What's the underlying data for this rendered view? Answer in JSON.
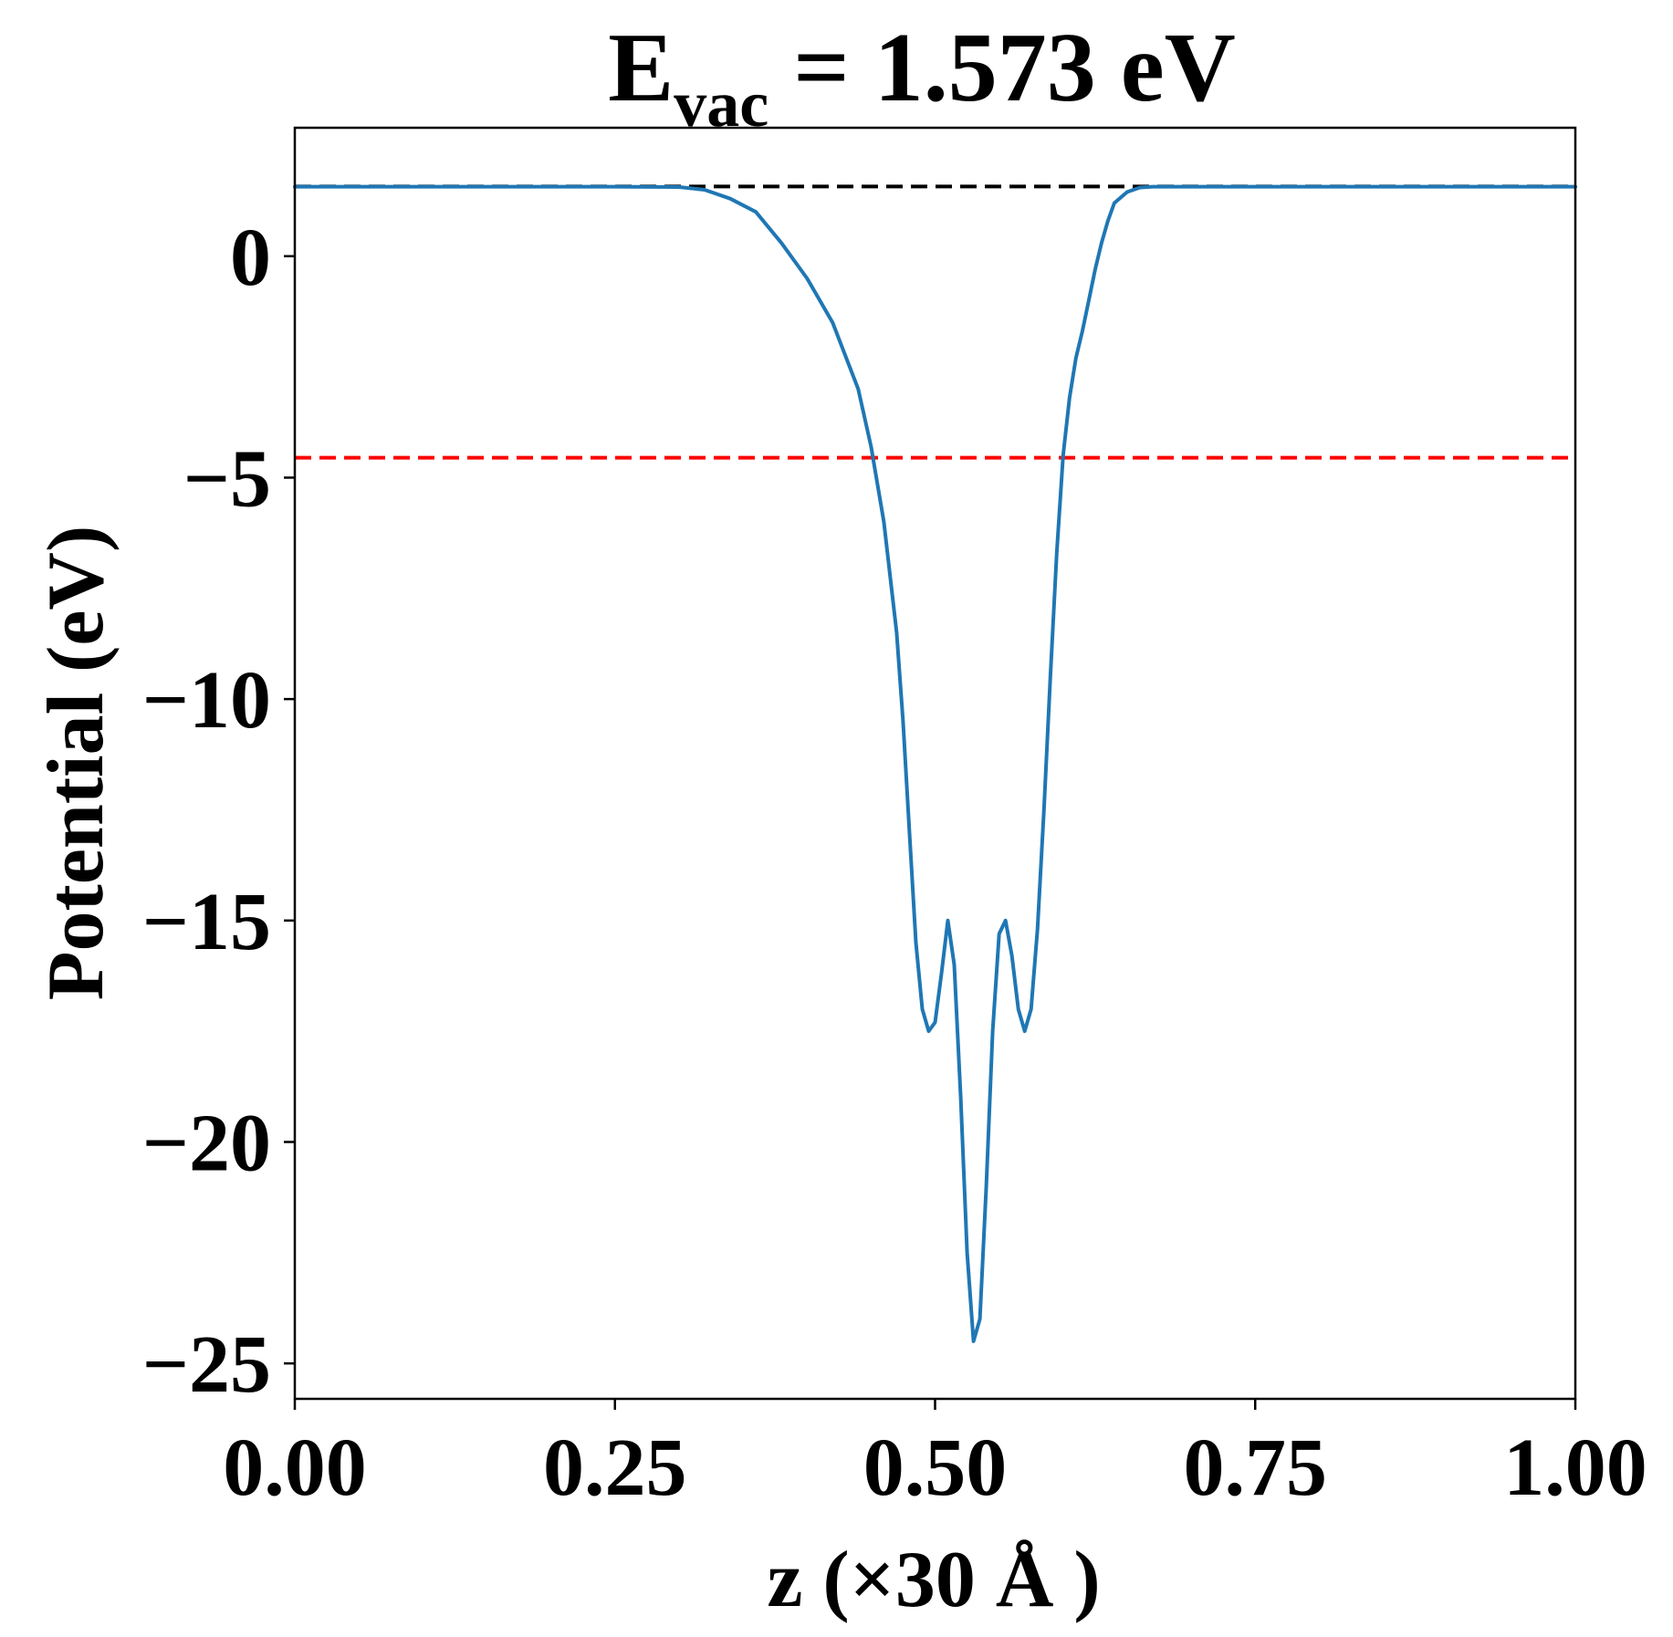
{
  "chart_data": {
    "type": "line",
    "title": {
      "main": "E",
      "subscript": "vac",
      "rest": " = 1.573 eV"
    },
    "xlabel": "z (×30 Å )",
    "ylabel": "Potential (eV)",
    "xlim": [
      0.0,
      1.0
    ],
    "ylim": [
      -25.8,
      2.9
    ],
    "x_ticks": [
      0.0,
      0.25,
      0.5,
      0.75,
      1.0
    ],
    "x_tick_labels": [
      "0.00",
      "0.25",
      "0.50",
      "0.75",
      "1.00"
    ],
    "y_ticks": [
      0,
      -5,
      -10,
      -15,
      -20,
      -25
    ],
    "y_tick_labels": [
      "0",
      "−5",
      "−10",
      "−15",
      "−20",
      "−25"
    ],
    "grid": false,
    "series": [
      {
        "color": "#1f77b4",
        "x": [
          0.0,
          0.05,
          0.1,
          0.15,
          0.2,
          0.25,
          0.3,
          0.32,
          0.34,
          0.36,
          0.38,
          0.4,
          0.42,
          0.44,
          0.45,
          0.46,
          0.47,
          0.475,
          0.48,
          0.485,
          0.49,
          0.495,
          0.5,
          0.505,
          0.51,
          0.515,
          0.52,
          0.525,
          0.53,
          0.535,
          0.54,
          0.545,
          0.55,
          0.555,
          0.56,
          0.565,
          0.57,
          0.575,
          0.58,
          0.585,
          0.59,
          0.595,
          0.6,
          0.605,
          0.61,
          0.615,
          0.62,
          0.625,
          0.63,
          0.635,
          0.64,
          0.65,
          0.66,
          0.67,
          0.68,
          0.7,
          0.72,
          0.74,
          0.76,
          0.78,
          0.8,
          0.85,
          0.9,
          0.95,
          1.0
        ],
        "y": [
          1.57,
          1.57,
          1.57,
          1.57,
          1.57,
          1.57,
          1.56,
          1.5,
          1.3,
          1.0,
          0.3,
          -0.5,
          -1.5,
          -3.0,
          -4.3,
          -6.0,
          -8.5,
          -10.5,
          -13.0,
          -15.5,
          -17.0,
          -17.5,
          -17.3,
          -16.2,
          -15.0,
          -16.0,
          -19.0,
          -22.5,
          -24.5,
          -24.0,
          -21.0,
          -17.5,
          -15.3,
          -15.0,
          -15.8,
          -17.0,
          -17.5,
          -17.0,
          -15.2,
          -12.5,
          -9.5,
          -6.7,
          -4.5,
          -3.2,
          -2.3,
          -1.7,
          -1.0,
          -0.3,
          0.3,
          0.8,
          1.2,
          1.45,
          1.55,
          1.57,
          1.57,
          1.57,
          1.57,
          1.57,
          1.57,
          1.57,
          1.57,
          1.57,
          1.57,
          1.57,
          1.57
        ]
      }
    ],
    "reference_lines": [
      {
        "y": 1.573,
        "color": "#000000",
        "style": "dashed"
      },
      {
        "y": -4.55,
        "color": "#ff0000",
        "style": "dashed"
      }
    ]
  }
}
